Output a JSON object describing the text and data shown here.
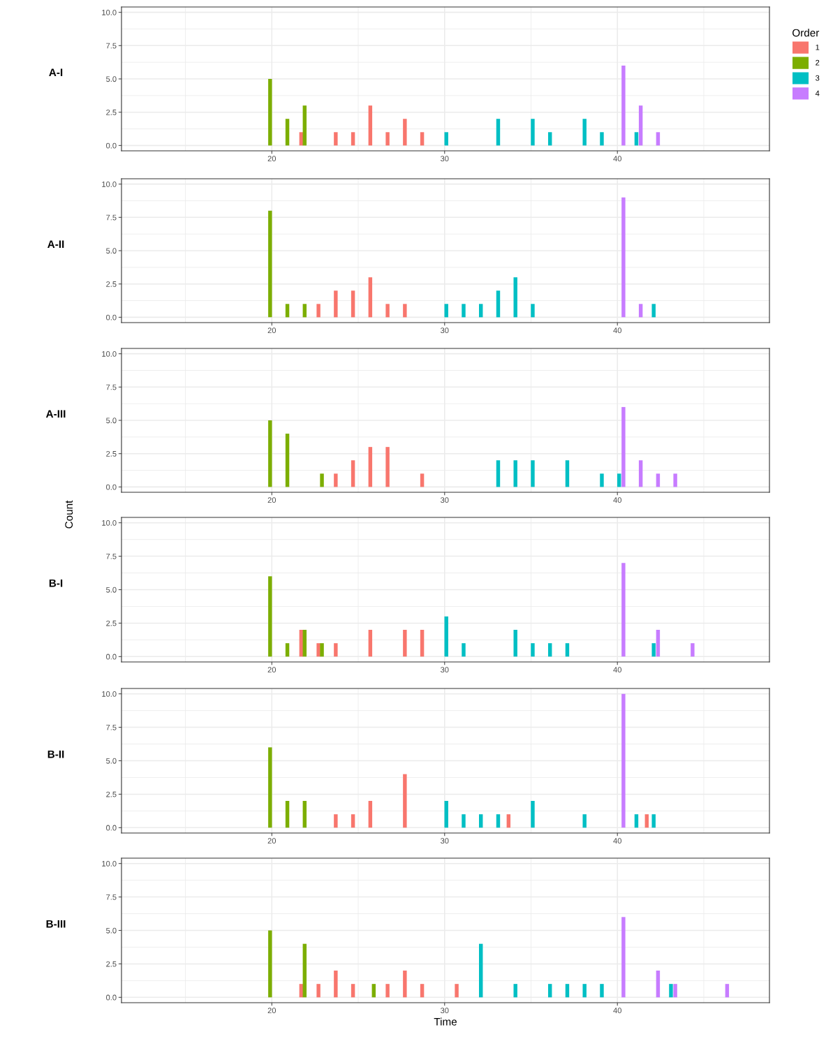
{
  "chart_data": [
    {
      "type": "bar",
      "title": "A-I",
      "legend_title": "Order",
      "legend": "right",
      "grid": true,
      "xlim": [
        11.3,
        48.8
      ],
      "ylim": [
        -0.4,
        10.4
      ],
      "xticks": [
        20,
        30,
        40
      ],
      "yticks": [
        {
          "value": 0,
          "label": "0.0"
        },
        {
          "value": 2.5,
          "label": "2.5"
        },
        {
          "value": 5,
          "label": "5.0"
        },
        {
          "value": 7.5,
          "label": "7.5"
        },
        {
          "value": 10,
          "label": "10.0"
        }
      ],
      "series": [
        {
          "name": "1",
          "color": "#f8766d",
          "x": [
            21.7,
            23.7,
            24.7,
            25.7,
            26.7,
            27.7,
            28.7
          ],
          "values": [
            1,
            1,
            1,
            3,
            1,
            2,
            1
          ]
        },
        {
          "name": "2",
          "color": "#7cae00",
          "x": [
            19.9,
            20.9,
            21.9
          ],
          "values": [
            5,
            2,
            3
          ]
        },
        {
          "name": "3",
          "color": "#00bfc4",
          "x": [
            30.1,
            33.1,
            35.1,
            36.1,
            38.1,
            39.1,
            41.1
          ],
          "values": [
            1,
            2,
            2,
            1,
            2,
            1,
            1
          ]
        },
        {
          "name": "4",
          "color": "#c77cff",
          "x": [
            40.35,
            41.35,
            42.35
          ],
          "values": [
            6,
            3,
            1
          ]
        }
      ]
    },
    {
      "type": "bar",
      "title": "A-II",
      "grid": true,
      "xlim": [
        11.3,
        48.8
      ],
      "ylim": [
        -0.4,
        10.4
      ],
      "xticks": [
        20,
        30,
        40
      ],
      "yticks": [
        {
          "value": 0,
          "label": "0.0"
        },
        {
          "value": 2.5,
          "label": "2.5"
        },
        {
          "value": 5,
          "label": "5.0"
        },
        {
          "value": 7.5,
          "label": "7.5"
        },
        {
          "value": 10,
          "label": "10.0"
        }
      ],
      "series": [
        {
          "color": "#f8766d",
          "x": [
            22.7,
            23.7,
            24.7,
            25.7,
            26.7,
            27.7
          ],
          "values": [
            1,
            2,
            2,
            3,
            1,
            1
          ]
        },
        {
          "color": "#7cae00",
          "x": [
            19.9,
            20.9,
            21.9
          ],
          "values": [
            8,
            1,
            1
          ]
        },
        {
          "color": "#00bfc4",
          "x": [
            30.1,
            31.1,
            32.1,
            33.1,
            34.1,
            35.1,
            42.1
          ],
          "values": [
            1,
            1,
            1,
            2,
            3,
            1,
            1
          ]
        },
        {
          "color": "#c77cff",
          "x": [
            40.35,
            41.35
          ],
          "values": [
            9,
            1
          ]
        }
      ]
    },
    {
      "type": "bar",
      "title": "A-III",
      "grid": true,
      "xlim": [
        11.3,
        48.8
      ],
      "ylim": [
        -0.4,
        10.4
      ],
      "xticks": [
        20,
        30,
        40
      ],
      "yticks": [
        {
          "value": 0,
          "label": "0.0"
        },
        {
          "value": 2.5,
          "label": "2.5"
        },
        {
          "value": 5,
          "label": "5.0"
        },
        {
          "value": 7.5,
          "label": "7.5"
        },
        {
          "value": 10,
          "label": "10.0"
        }
      ],
      "series": [
        {
          "color": "#f8766d",
          "x": [
            23.7,
            24.7,
            25.7,
            26.7,
            28.7
          ],
          "values": [
            1,
            2,
            3,
            3,
            1
          ]
        },
        {
          "color": "#7cae00",
          "x": [
            19.9,
            20.9,
            22.9
          ],
          "values": [
            5,
            4,
            1
          ]
        },
        {
          "color": "#00bfc4",
          "x": [
            33.1,
            34.1,
            35.1,
            37.1,
            39.1,
            40.1
          ],
          "values": [
            2,
            2,
            2,
            2,
            1,
            1
          ]
        },
        {
          "color": "#c77cff",
          "x": [
            40.35,
            41.35,
            42.35,
            43.35
          ],
          "values": [
            6,
            2,
            1,
            1
          ]
        }
      ]
    },
    {
      "type": "bar",
      "title": "B-I",
      "ylabel": "Count",
      "grid": true,
      "xlim": [
        11.3,
        48.8
      ],
      "ylim": [
        -0.4,
        10.4
      ],
      "xticks": [
        20,
        30,
        40
      ],
      "yticks": [
        {
          "value": 0,
          "label": "0.0"
        },
        {
          "value": 2.5,
          "label": "2.5"
        },
        {
          "value": 5,
          "label": "5.0"
        },
        {
          "value": 7.5,
          "label": "7.5"
        },
        {
          "value": 10,
          "label": "10.0"
        }
      ],
      "series": [
        {
          "color": "#f8766d",
          "x": [
            21.7,
            22.7,
            23.7,
            25.7,
            27.7,
            28.7
          ],
          "values": [
            2,
            1,
            1,
            2,
            2,
            2
          ]
        },
        {
          "color": "#7cae00",
          "x": [
            19.9,
            20.9,
            21.9,
            22.9
          ],
          "values": [
            6,
            1,
            2,
            1
          ]
        },
        {
          "color": "#00bfc4",
          "x": [
            30.1,
            31.1,
            34.1,
            35.1,
            36.1,
            37.1,
            42.1
          ],
          "values": [
            3,
            1,
            2,
            1,
            1,
            1,
            1
          ]
        },
        {
          "color": "#c77cff",
          "x": [
            40.35,
            42.35,
            44.35
          ],
          "values": [
            7,
            2,
            1
          ]
        }
      ]
    },
    {
      "type": "bar",
      "title": "B-II",
      "grid": true,
      "xlim": [
        11.3,
        48.8
      ],
      "ylim": [
        -0.4,
        10.4
      ],
      "xticks": [
        20,
        30,
        40
      ],
      "yticks": [
        {
          "value": 0,
          "label": "0.0"
        },
        {
          "value": 2.5,
          "label": "2.5"
        },
        {
          "value": 5,
          "label": "5.0"
        },
        {
          "value": 7.5,
          "label": "7.5"
        },
        {
          "value": 10,
          "label": "10.0"
        }
      ],
      "series": [
        {
          "color": "#f8766d",
          "x": [
            23.7,
            24.7,
            25.7,
            27.7,
            33.7,
            41.7
          ],
          "values": [
            1,
            1,
            2,
            4,
            1,
            1
          ]
        },
        {
          "color": "#7cae00",
          "x": [
            19.9,
            20.9,
            21.9
          ],
          "values": [
            6,
            2,
            2
          ]
        },
        {
          "color": "#00bfc4",
          "x": [
            30.1,
            31.1,
            32.1,
            33.1,
            35.1,
            38.1,
            41.1,
            42.1
          ],
          "values": [
            2,
            1,
            1,
            1,
            2,
            1,
            1,
            1
          ]
        },
        {
          "color": "#c77cff",
          "x": [
            40.35
          ],
          "values": [
            10
          ]
        }
      ]
    },
    {
      "type": "bar",
      "title": "B-III",
      "xlabel": "Time",
      "grid": true,
      "xlim": [
        11.3,
        48.8
      ],
      "ylim": [
        -0.4,
        10.4
      ],
      "xticks": [
        20,
        30,
        40
      ],
      "yticks": [
        {
          "value": 0,
          "label": "0.0"
        },
        {
          "value": 2.5,
          "label": "2.5"
        },
        {
          "value": 5,
          "label": "5.0"
        },
        {
          "value": 7.5,
          "label": "7.5"
        },
        {
          "value": 10,
          "label": "10.0"
        }
      ],
      "series": [
        {
          "color": "#f8766d",
          "x": [
            21.7,
            22.7,
            23.7,
            24.7,
            26.7,
            27.7,
            28.7,
            30.7
          ],
          "values": [
            1,
            1,
            2,
            1,
            1,
            2,
            1,
            1
          ]
        },
        {
          "color": "#7cae00",
          "x": [
            19.9,
            21.9,
            25.9
          ],
          "values": [
            5,
            4,
            1
          ]
        },
        {
          "color": "#00bfc4",
          "x": [
            32.1,
            34.1,
            36.1,
            37.1,
            38.1,
            39.1,
            43.1
          ],
          "values": [
            4,
            1,
            1,
            1,
            1,
            1,
            1
          ]
        },
        {
          "color": "#c77cff",
          "x": [
            40.35,
            42.35,
            43.35,
            46.35
          ],
          "values": [
            6,
            2,
            1,
            1
          ]
        }
      ]
    }
  ]
}
